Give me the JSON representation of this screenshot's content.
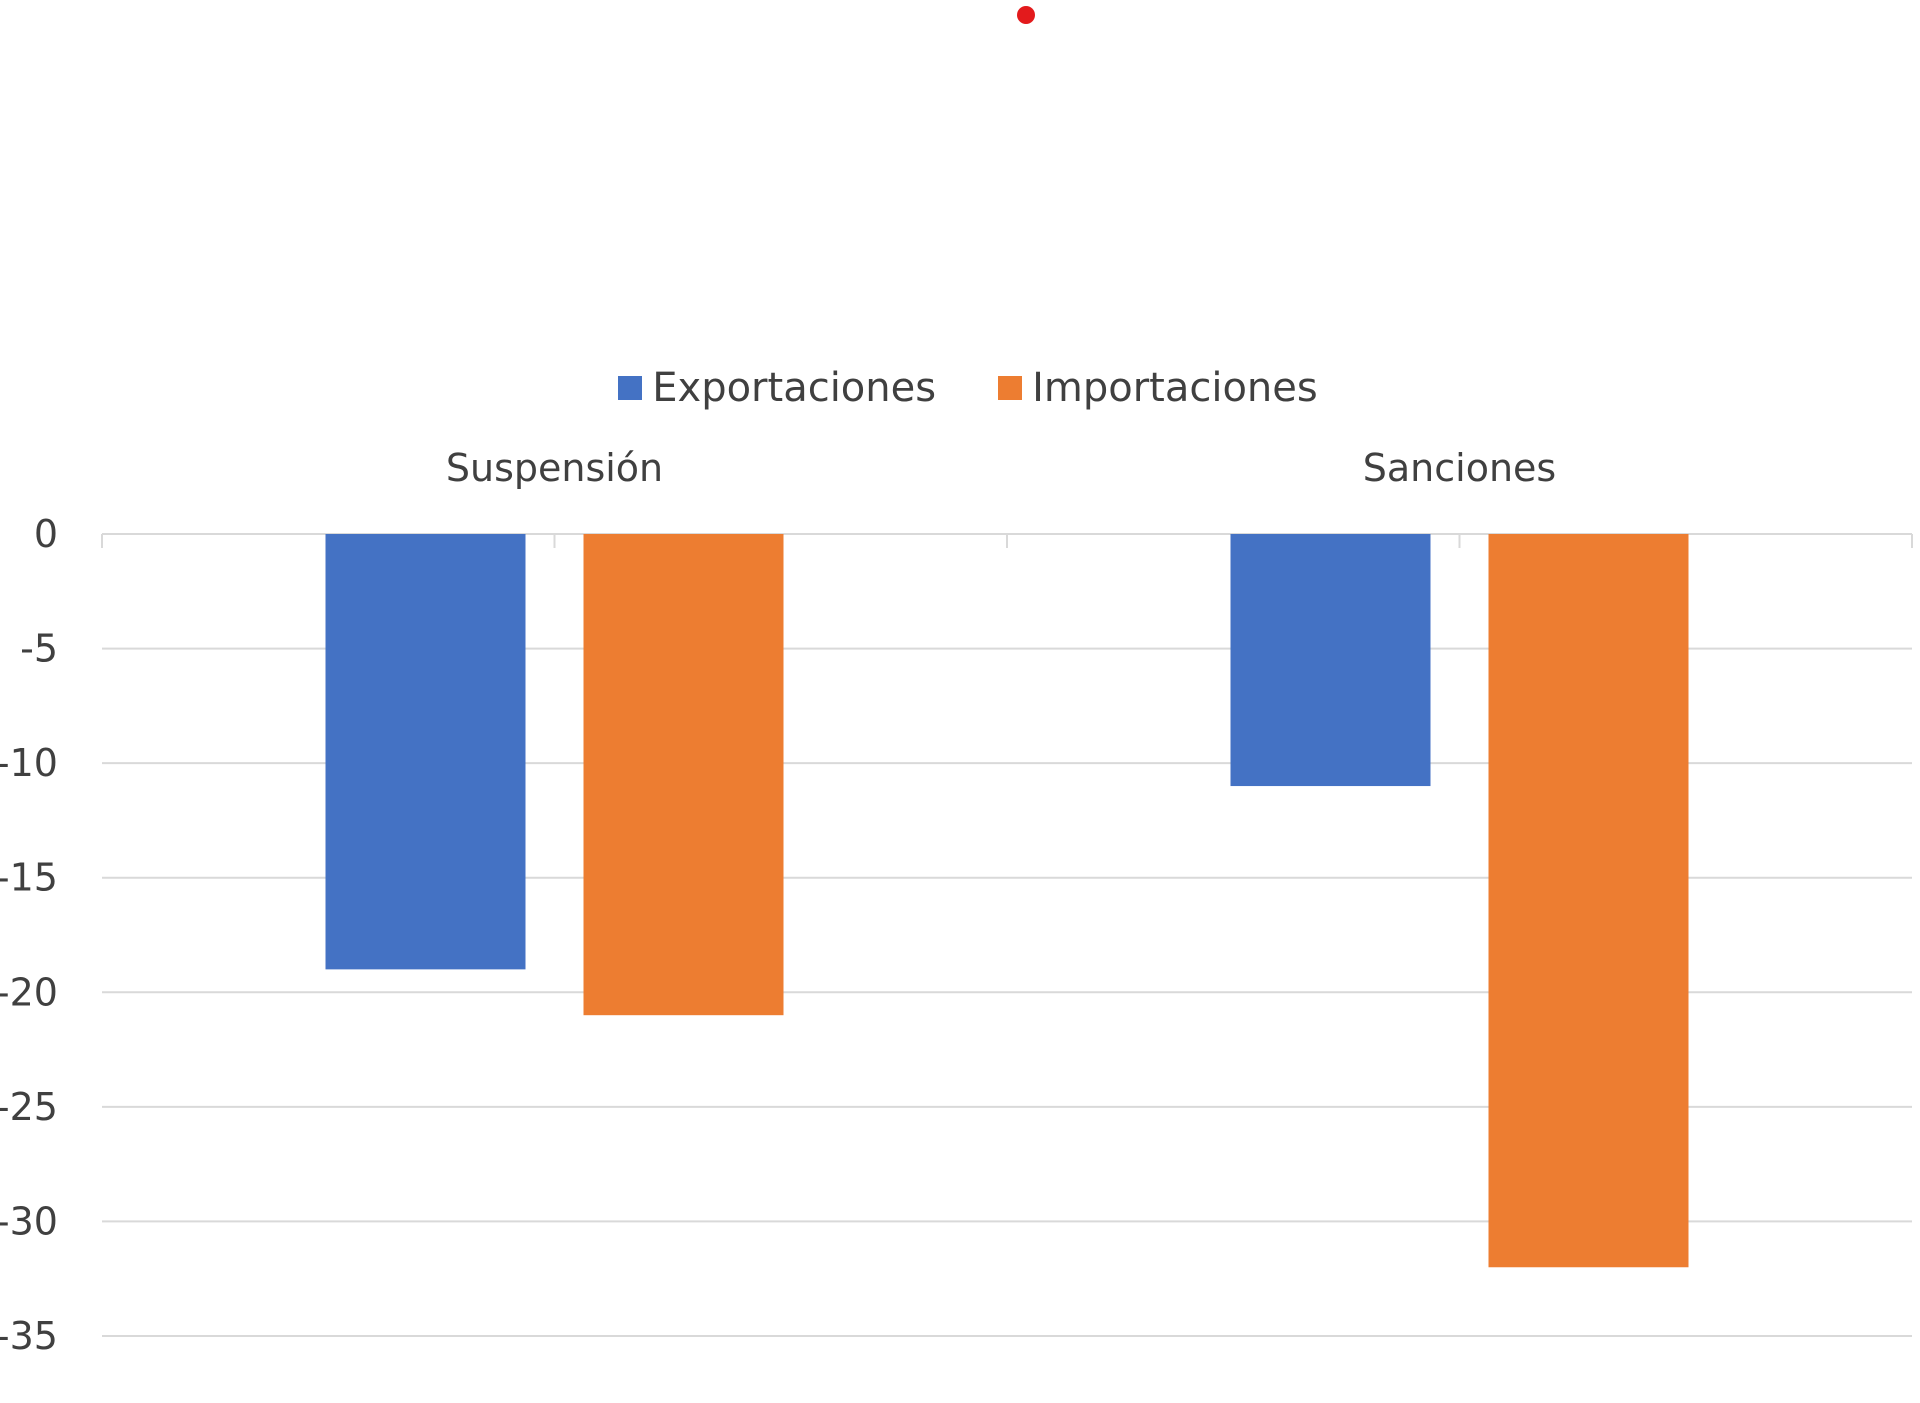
{
  "colors": {
    "exportaciones": "#4472c4",
    "importaciones": "#ed7d31",
    "gridline": "#d9d9d9",
    "marker_dot": "#e31a1c",
    "text": "#404040"
  },
  "legend": [
    {
      "name": "Exportaciones",
      "color": "#4472c4"
    },
    {
      "name": "Importaciones",
      "color": "#ed7d31"
    }
  ],
  "chart_data": {
    "type": "bar",
    "orientation": "vertical",
    "categories": [
      "Suspensión",
      "Sanciones"
    ],
    "category_label_position": "top",
    "series": [
      {
        "name": "Exportaciones",
        "values": [
          -19,
          -11
        ]
      },
      {
        "name": "Importaciones",
        "values": [
          -21,
          -32
        ]
      }
    ],
    "ylim": [
      -35,
      0
    ],
    "yticks": [
      "0",
      "-5",
      "-10",
      "-15",
      "-20",
      "-25",
      "-30",
      "-35"
    ],
    "grid": true,
    "legend_position": "top-center",
    "title": "",
    "xlabel": "",
    "ylabel": ""
  }
}
